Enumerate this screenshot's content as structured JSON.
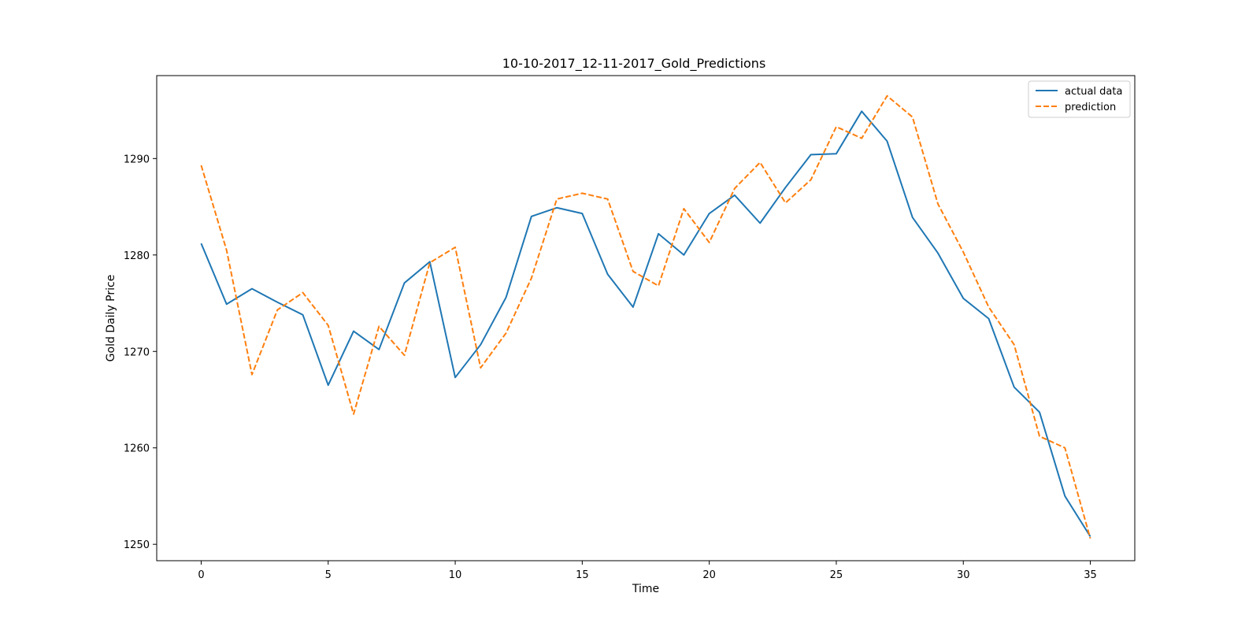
{
  "chart_data": {
    "type": "line",
    "title": "10-10-2017_12-11-2017_Gold_Predictions",
    "xlabel": "Time",
    "ylabel": "Gold Daily Price",
    "xlim": [
      -1.75,
      36.75
    ],
    "ylim": [
      1248.3,
      1298.6
    ],
    "xticks": [
      0,
      5,
      10,
      15,
      20,
      25,
      30,
      35
    ],
    "yticks": [
      1250,
      1260,
      1270,
      1280,
      1290
    ],
    "x": [
      0,
      1,
      2,
      3,
      4,
      5,
      6,
      7,
      8,
      9,
      10,
      11,
      12,
      13,
      14,
      15,
      16,
      17,
      18,
      19,
      20,
      21,
      22,
      23,
      24,
      25,
      26,
      27,
      28,
      29,
      30,
      31,
      32,
      33,
      34,
      35
    ],
    "grid": false,
    "legend_position": "top-right",
    "series": [
      {
        "name": "actual data",
        "color": "#1f77b4",
        "style": "solid",
        "values": [
          1281.2,
          1274.9,
          1276.5,
          1275.1,
          1273.8,
          1266.5,
          1272.1,
          1270.2,
          1277.1,
          1279.3,
          1267.3,
          1270.7,
          1275.6,
          1284.0,
          1284.9,
          1284.3,
          1278.0,
          1274.6,
          1282.2,
          1280.0,
          1284.3,
          1286.2,
          1283.3,
          1287.0,
          1290.4,
          1290.5,
          1294.9,
          1291.8,
          1283.9,
          1280.2,
          1275.5,
          1273.4,
          1266.3,
          1263.7,
          1255.0,
          1250.8
        ]
      },
      {
        "name": "prediction",
        "color": "#ff7f0e",
        "style": "dashed",
        "values": [
          1289.3,
          1280.5,
          1267.6,
          1274.3,
          1276.1,
          1272.7,
          1263.5,
          1272.6,
          1269.6,
          1279.2,
          1280.8,
          1268.3,
          1271.9,
          1277.6,
          1285.8,
          1286.4,
          1285.8,
          1278.3,
          1276.8,
          1284.8,
          1281.3,
          1286.9,
          1289.6,
          1285.4,
          1287.8,
          1293.3,
          1292.1,
          1296.5,
          1294.3,
          1285.3,
          1280.3,
          1274.6,
          1270.7,
          1261.2,
          1260.0,
          1250.6
        ]
      }
    ]
  }
}
